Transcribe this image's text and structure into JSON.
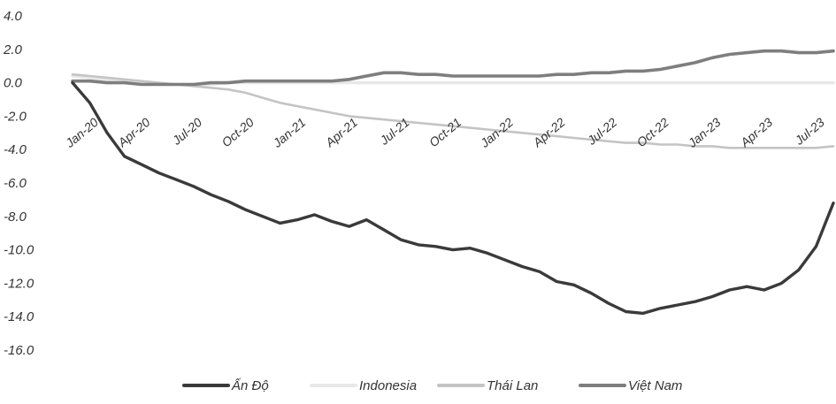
{
  "chart_data": {
    "type": "line",
    "title": "",
    "xlabel": "",
    "ylabel": "",
    "ylim": [
      -16,
      4
    ],
    "yticks": [
      "4.0",
      "2.0",
      "0.0",
      "-2.0",
      "-4.0",
      "-6.0",
      "-8.0",
      "-10.0",
      "-12.0",
      "-14.0",
      "-16.0"
    ],
    "xtick_labels": [
      "Jan-20",
      "Apr-20",
      "Jul-20",
      "Oct-20",
      "Jan-21",
      "Apr-21",
      "Jul-21",
      "Oct-21",
      "Jan-22",
      "Apr-22",
      "Jul-22",
      "Oct-22",
      "Jan-23",
      "Apr-23",
      "Jul-23"
    ],
    "x": [
      "Jan-20",
      "Feb-20",
      "Mar-20",
      "Apr-20",
      "May-20",
      "Jun-20",
      "Jul-20",
      "Aug-20",
      "Sep-20",
      "Oct-20",
      "Nov-20",
      "Dec-20",
      "Jan-21",
      "Feb-21",
      "Mar-21",
      "Apr-21",
      "May-21",
      "Jun-21",
      "Jul-21",
      "Aug-21",
      "Sep-21",
      "Oct-21",
      "Nov-21",
      "Dec-21",
      "Jan-22",
      "Feb-22",
      "Mar-22",
      "Apr-22",
      "May-22",
      "Jun-22",
      "Jul-22",
      "Aug-22",
      "Sep-22",
      "Oct-22",
      "Nov-22",
      "Dec-22",
      "Jan-23",
      "Feb-23",
      "Mar-23",
      "Apr-23",
      "May-23",
      "Jun-23",
      "Jul-23",
      "Aug-23",
      "Sep-23"
    ],
    "legend_position": "bottom",
    "grid": false,
    "series": [
      {
        "name": "Ấn Độ",
        "color": "#3a3a3a",
        "values": [
          0.0,
          -1.2,
          -3.0,
          -4.4,
          -4.9,
          -5.4,
          -5.8,
          -6.2,
          -6.7,
          -7.1,
          -7.6,
          -8.0,
          -8.4,
          -8.2,
          -7.9,
          -8.3,
          -8.6,
          -8.2,
          -8.8,
          -9.4,
          -9.7,
          -9.8,
          -10.0,
          -9.9,
          -10.2,
          -10.6,
          -11.0,
          -11.3,
          -11.9,
          -12.1,
          -12.6,
          -13.2,
          -13.7,
          -13.8,
          -13.5,
          -13.3,
          -13.1,
          -12.8,
          -12.4,
          -12.2,
          -12.4,
          -12.0,
          -11.2,
          -9.8,
          -7.2
        ]
      },
      {
        "name": "Indonesia",
        "color": "#e8e8e8",
        "values": [
          0.4,
          0.3,
          0.2,
          0.1,
          0.0,
          -0.1,
          -0.1,
          -0.1,
          -0.1,
          0.0,
          0.0,
          0.0,
          0.0,
          0.0,
          0.0,
          0.0,
          0.0,
          0.0,
          0.0,
          0.0,
          0.0,
          0.0,
          0.0,
          0.0,
          0.0,
          0.0,
          0.0,
          0.0,
          0.0,
          0.0,
          0.0,
          0.0,
          0.0,
          0.0,
          0.0,
          0.0,
          0.0,
          0.0,
          0.0,
          0.0,
          0.0,
          0.0,
          0.0,
          0.0,
          0.0
        ]
      },
      {
        "name": "Thái Lan",
        "color": "#c4c4c4",
        "values": [
          0.5,
          0.4,
          0.3,
          0.2,
          0.1,
          0.0,
          -0.1,
          -0.2,
          -0.3,
          -0.4,
          -0.6,
          -0.9,
          -1.2,
          -1.4,
          -1.6,
          -1.8,
          -2.0,
          -2.1,
          -2.2,
          -2.3,
          -2.4,
          -2.5,
          -2.6,
          -2.7,
          -2.8,
          -2.9,
          -3.0,
          -3.1,
          -3.2,
          -3.3,
          -3.4,
          -3.5,
          -3.6,
          -3.6,
          -3.7,
          -3.7,
          -3.8,
          -3.8,
          -3.9,
          -3.9,
          -3.9,
          -3.9,
          -3.9,
          -3.9,
          -3.8
        ]
      },
      {
        "name": "Việt Nam",
        "color": "#7e7e7e",
        "values": [
          0.1,
          0.1,
          0.0,
          0.0,
          -0.1,
          -0.1,
          -0.1,
          -0.1,
          0.0,
          0.0,
          0.1,
          0.1,
          0.1,
          0.1,
          0.1,
          0.1,
          0.2,
          0.4,
          0.6,
          0.6,
          0.5,
          0.5,
          0.4,
          0.4,
          0.4,
          0.4,
          0.4,
          0.4,
          0.5,
          0.5,
          0.6,
          0.6,
          0.7,
          0.7,
          0.8,
          1.0,
          1.2,
          1.5,
          1.7,
          1.8,
          1.9,
          1.9,
          1.8,
          1.8,
          1.9
        ]
      }
    ]
  }
}
